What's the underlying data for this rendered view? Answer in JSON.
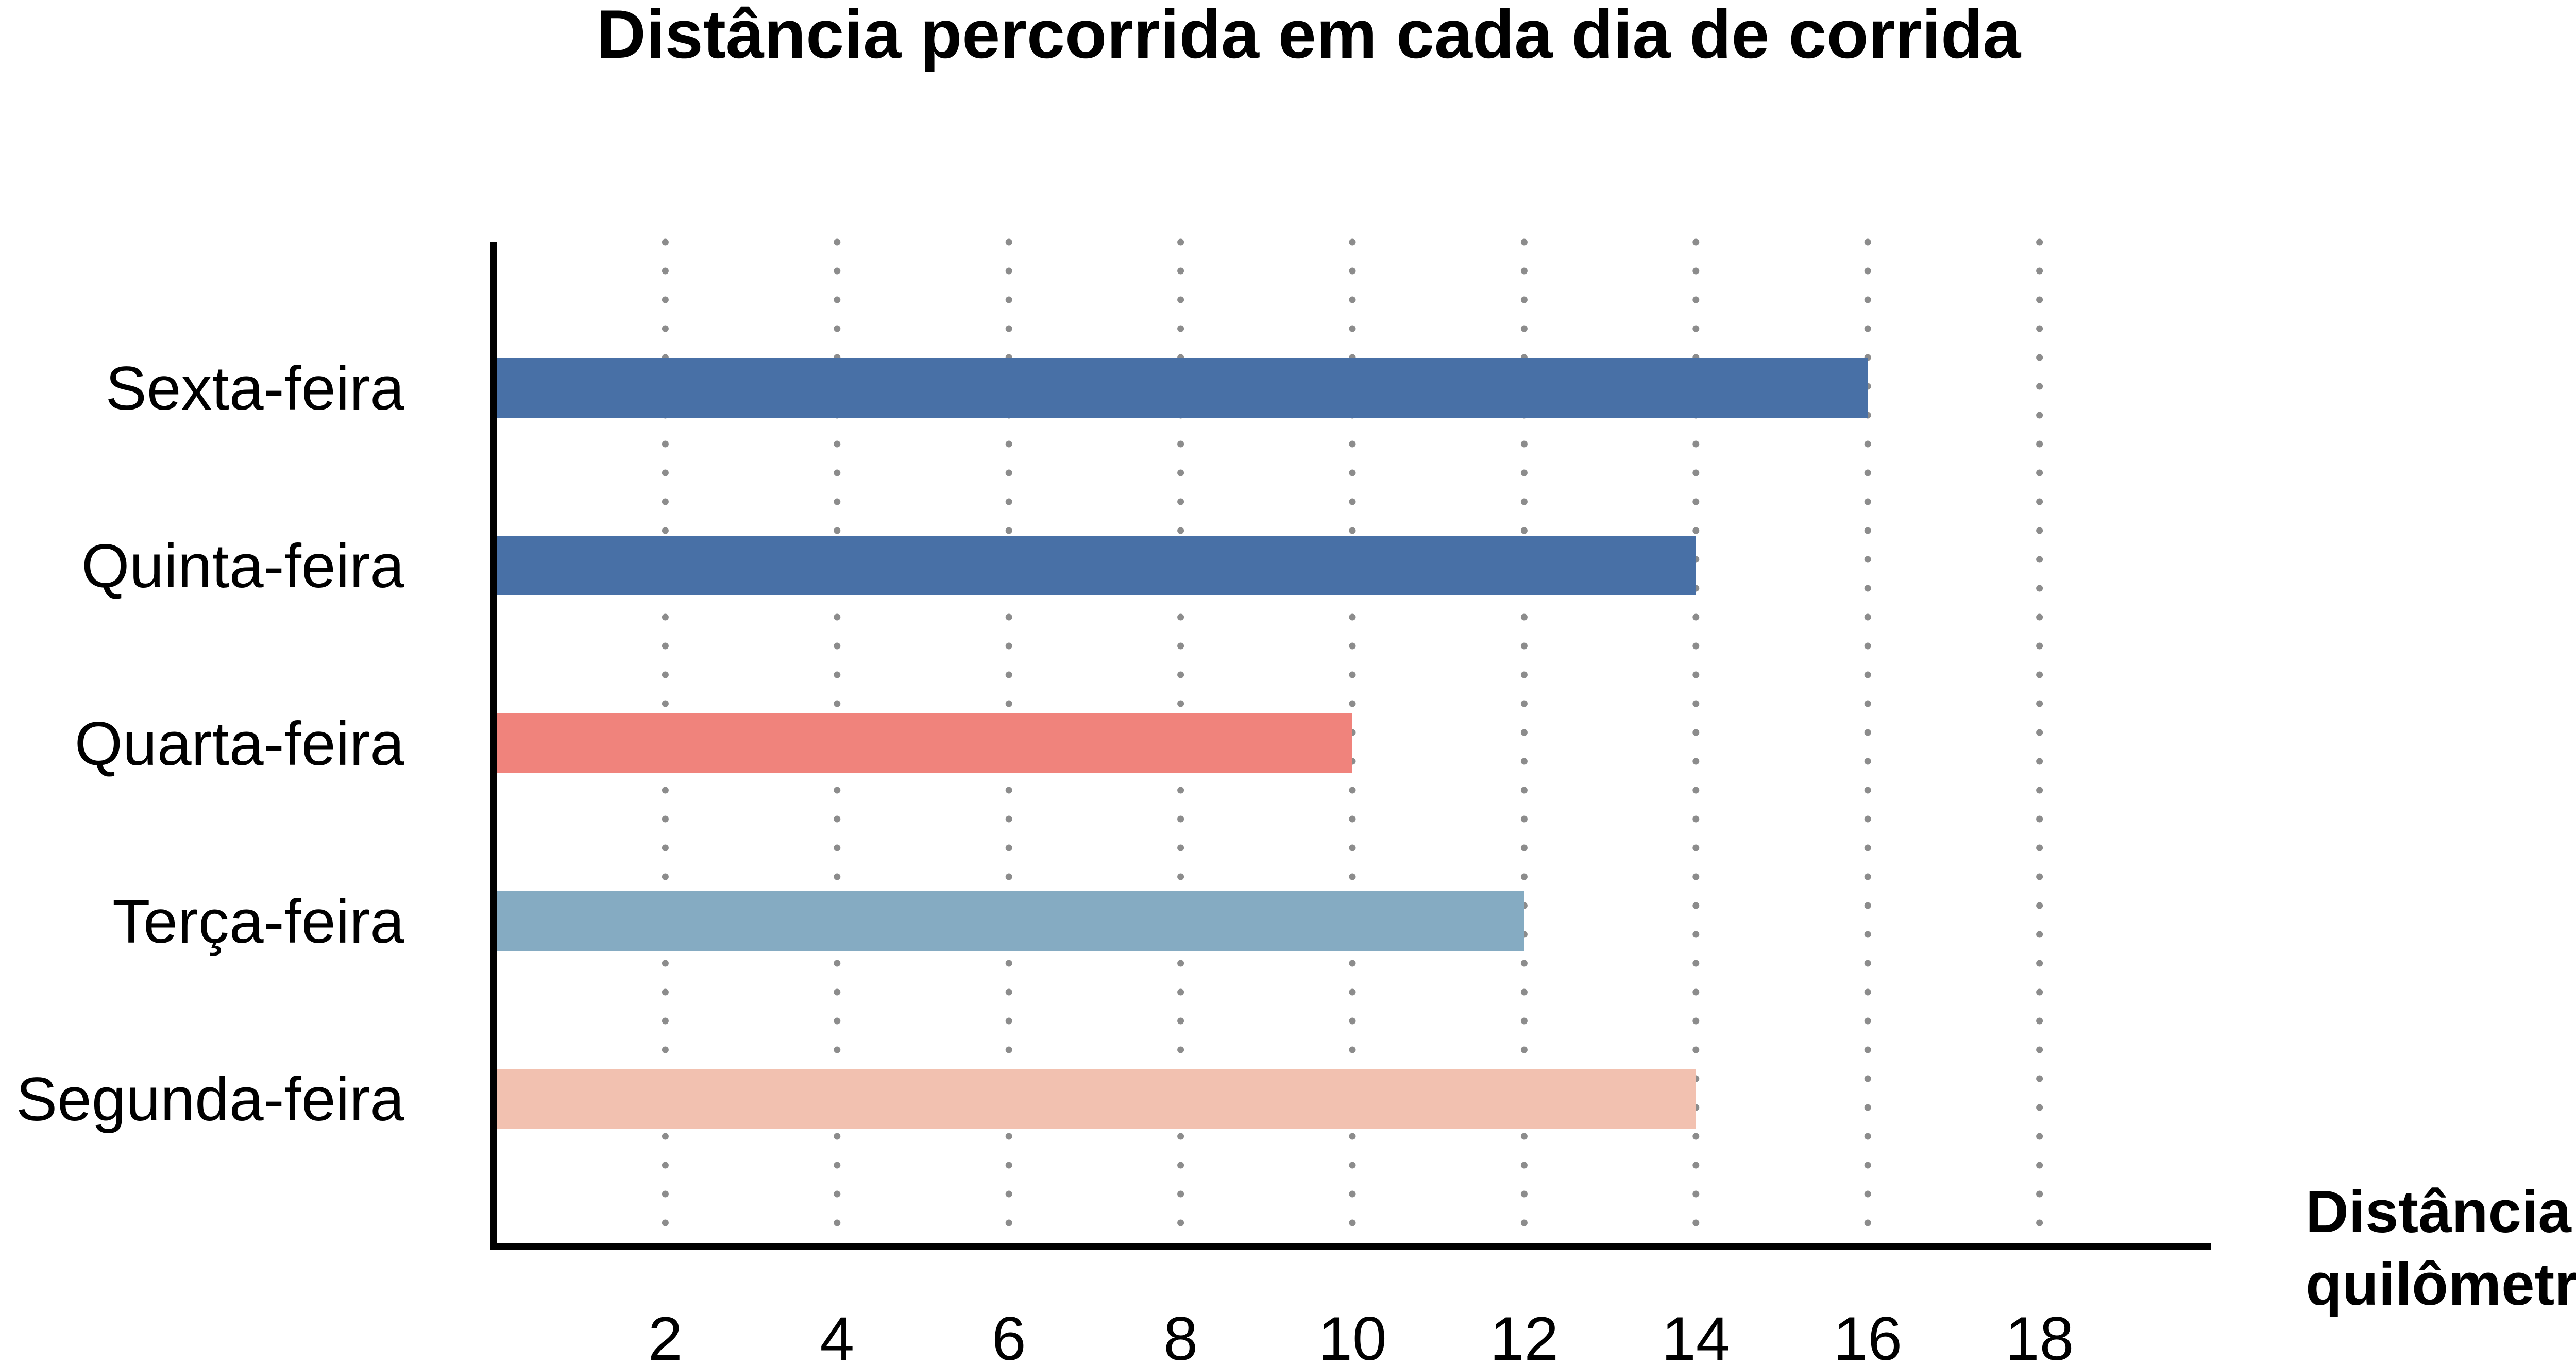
{
  "chart_data": {
    "type": "bar",
    "orientation": "horizontal",
    "title": "Distância percorrida em cada dia de corrida",
    "xlabel_lines": [
      "Distância em",
      "quilômetros"
    ],
    "ylabel": "",
    "categories": [
      "Segunda-feira",
      "Terça-feira",
      "Quarta-feira",
      "Quinta-feira",
      "Sexta-feira"
    ],
    "values": [
      14,
      12,
      10,
      14,
      16
    ],
    "bar_colors": [
      "#F2C1B0",
      "#85ABC2",
      "#F0837C",
      "#4870A6",
      "#4870A6"
    ],
    "xlim": [
      0,
      20
    ],
    "xticks": [
      2,
      4,
      6,
      8,
      10,
      12,
      14,
      16,
      18
    ],
    "grid": "vertical-dotted",
    "grid_color": "#8C8C8C",
    "axis_color": "#000000",
    "legend": "none"
  }
}
